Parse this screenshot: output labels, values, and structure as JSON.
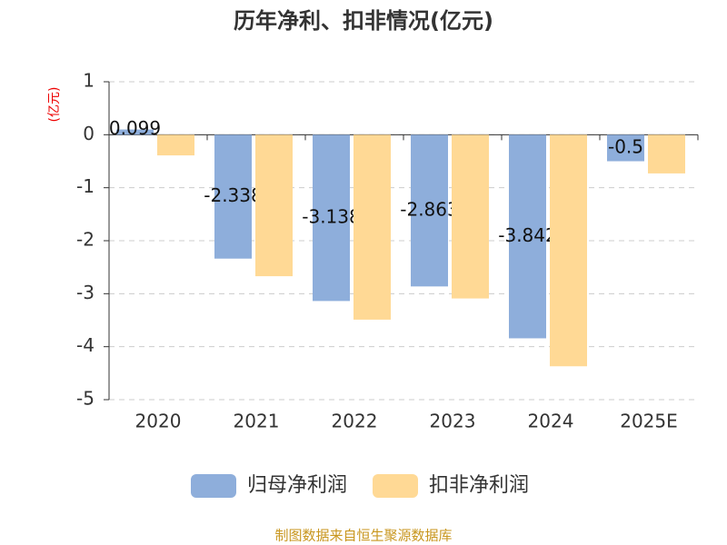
{
  "chart_data": {
    "type": "bar",
    "title": "历年净利、扣非情况(亿元)",
    "y_label": "(亿元)",
    "categories": [
      "2020",
      "2021",
      "2022",
      "2023",
      "2024",
      "2025E"
    ],
    "series": [
      {
        "name": "归母净利润",
        "color": "#8eaedb",
        "values": [
          0.099,
          -2.338,
          -3.138,
          -2.863,
          -3.842,
          -0.5
        ]
      },
      {
        "name": "扣非净利润",
        "color": "#ffd995",
        "values": [
          -0.39,
          -2.67,
          -3.49,
          -3.09,
          -4.37,
          -0.73
        ]
      }
    ],
    "ylim": [
      -5,
      1
    ],
    "yticks": [
      -5,
      -4,
      -3,
      -2,
      -1,
      0,
      1
    ],
    "grid": true,
    "source": "制图数据来自恒生聚源数据库"
  }
}
